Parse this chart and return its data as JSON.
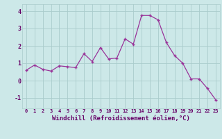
{
  "x": [
    0,
    1,
    2,
    3,
    4,
    5,
    6,
    7,
    8,
    9,
    10,
    11,
    12,
    13,
    14,
    15,
    16,
    17,
    18,
    19,
    20,
    21,
    22,
    23
  ],
  "y": [
    0.6,
    0.9,
    0.65,
    0.55,
    0.85,
    0.8,
    0.75,
    1.55,
    1.1,
    1.9,
    1.25,
    1.3,
    2.4,
    2.1,
    3.75,
    3.75,
    3.5,
    2.2,
    1.45,
    1.0,
    0.1,
    0.1,
    -0.45,
    -1.1
  ],
  "line_color": "#993399",
  "marker": "+",
  "bg_color": "#cce8e8",
  "grid_color": "#aacccc",
  "xlabel": "Windchill (Refroidissement éolien,°C)",
  "xlabel_fontsize": 6.5,
  "xtick_labels": [
    "0",
    "1",
    "2",
    "3",
    "4",
    "5",
    "6",
    "7",
    "8",
    "9",
    "10",
    "11",
    "12",
    "13",
    "14",
    "15",
    "16",
    "17",
    "18",
    "19",
    "20",
    "21",
    "22",
    "23"
  ],
  "ytick_labels": [
    "-1",
    "0",
    "1",
    "2",
    "3",
    "4"
  ],
  "ylim": [
    -1.6,
    4.4
  ],
  "xlim": [
    -0.5,
    23.5
  ],
  "tick_color": "#660066",
  "label_color": "#660066"
}
